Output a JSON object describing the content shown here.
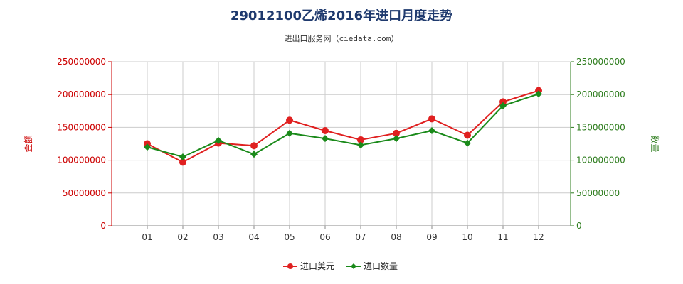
{
  "title": "29012100乙烯2016年进口月度走势",
  "subtitle": "进出口服务网（ciedata.com）",
  "colors": {
    "usd": "#e02020",
    "qty": "#1a8a1a",
    "left_axis": "#cc0000",
    "right_axis": "#2e7d1e",
    "grid": "#cccccc"
  },
  "chart_data": {
    "type": "line",
    "x": [
      "01",
      "02",
      "03",
      "04",
      "05",
      "06",
      "07",
      "08",
      "09",
      "10",
      "11",
      "12"
    ],
    "ylabel_left": "金额",
    "ylabel_right": "数量",
    "ylim_left": [
      0,
      250000000
    ],
    "ylim_right": [
      0,
      250000000
    ],
    "yticks_left": [
      "0",
      "50000000",
      "100000000",
      "150000000",
      "200000000",
      "250000000"
    ],
    "yticks_right": [
      "0",
      "50000000",
      "100000000",
      "150000000",
      "200000000",
      "250000000"
    ],
    "grid": true,
    "legend_position": "bottom",
    "series": [
      {
        "name": "进口美元",
        "axis": "left",
        "values": [
          125000000,
          97000000,
          126000000,
          122000000,
          161000000,
          145000000,
          131000000,
          141000000,
          163000000,
          138000000,
          189000000,
          206000000
        ]
      },
      {
        "name": "进口数量",
        "axis": "right",
        "values": [
          120000000,
          105000000,
          130000000,
          109000000,
          141000000,
          133000000,
          123000000,
          133000000,
          145000000,
          126000000,
          183000000,
          201000000
        ]
      }
    ]
  }
}
